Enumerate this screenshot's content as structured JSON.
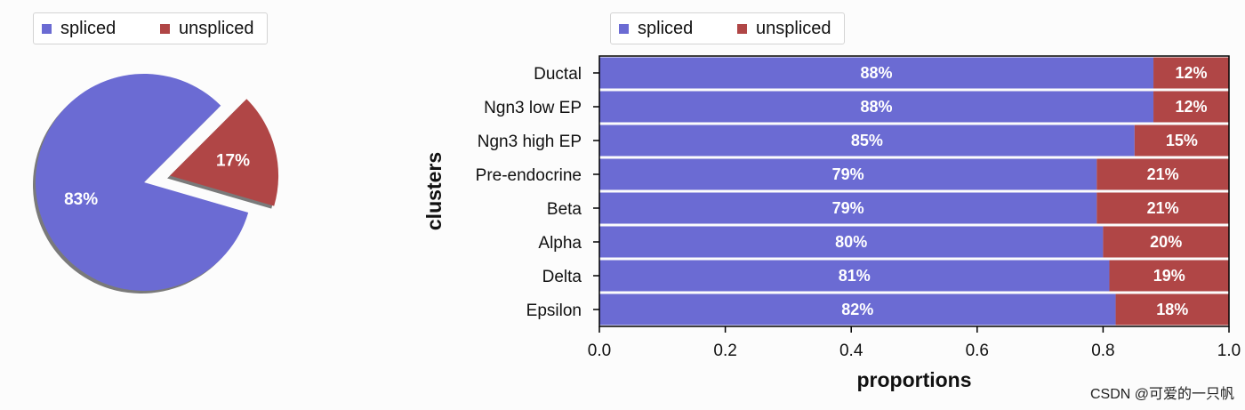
{
  "colors": {
    "spliced": "#6b6bd3",
    "unspliced": "#b04646"
  },
  "legend": {
    "spliced_label": "spliced",
    "unspliced_label": "unspliced"
  },
  "watermark": "CSDN @可爱的一只帆",
  "chart_data": [
    {
      "type": "pie",
      "slices": [
        {
          "label": "spliced",
          "value": 83,
          "value_label": "83%"
        },
        {
          "label": "unspliced",
          "value": 17,
          "value_label": "17%"
        }
      ],
      "legend": [
        "spliced",
        "unspliced"
      ],
      "legend_position": "top-left",
      "exploded": "unspliced",
      "shadow": true
    },
    {
      "type": "bar",
      "orientation": "horizontal",
      "stacked": true,
      "categories": [
        "Ductal",
        "Ngn3 low EP",
        "Ngn3 high EP",
        "Pre-endocrine",
        "Beta",
        "Alpha",
        "Delta",
        "Epsilon"
      ],
      "series": [
        {
          "name": "spliced",
          "values": [
            0.88,
            0.88,
            0.85,
            0.79,
            0.79,
            0.8,
            0.81,
            0.82
          ],
          "labels": [
            "88%",
            "88%",
            "85%",
            "79%",
            "79%",
            "80%",
            "81%",
            "82%"
          ]
        },
        {
          "name": "unspliced",
          "values": [
            0.12,
            0.12,
            0.15,
            0.21,
            0.21,
            0.2,
            0.19,
            0.18
          ],
          "labels": [
            "12%",
            "12%",
            "15%",
            "21%",
            "21%",
            "20%",
            "19%",
            "18%"
          ]
        }
      ],
      "xlabel": "proportions",
      "ylabel": "clusters",
      "xlim": [
        0,
        1
      ],
      "xticks": [
        "0.0",
        "0.2",
        "0.4",
        "0.6",
        "0.8",
        "1.0"
      ],
      "legend_position": "top-left",
      "grid": false
    }
  ]
}
